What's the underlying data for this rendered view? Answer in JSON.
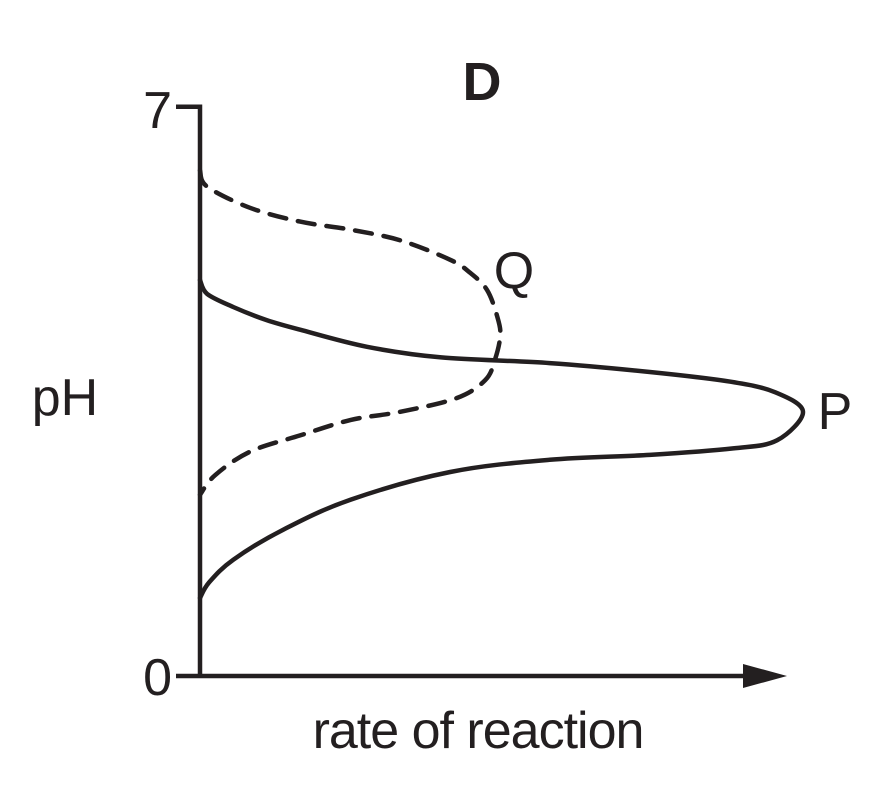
{
  "figure": {
    "colors": {
      "ink": "#231f20",
      "background": "#ffffff"
    },
    "labels": {
      "title": "D",
      "y_axis": "pH",
      "x_axis": "rate of reaction",
      "y_top_tick": "7",
      "y_bottom_tick": "0",
      "solid_curve": "P",
      "dashed_curve": "Q"
    }
  },
  "chart_data": {
    "type": "line",
    "title": "D",
    "xlabel": "rate of reaction",
    "ylabel": "pH",
    "ylim": [
      0,
      7
    ],
    "xlim": [
      0,
      100
    ],
    "x_axis_note": "rate axis has no numeric ticks; values are relative units 0-100",
    "y_ticks": [
      7,
      0
    ],
    "grid": false,
    "legend_position": "inline-curve-labels",
    "series": [
      {
        "name": "P",
        "line_style": "solid",
        "peak": {
          "rate": 100,
          "pH": 3.25
        },
        "axis_intercepts_pH": [
          4.87,
          0.96
        ],
        "points": [
          [
            0,
            4.87
          ],
          [
            1.2,
            4.7
          ],
          [
            5.5,
            4.54
          ],
          [
            11,
            4.38
          ],
          [
            16.6,
            4.26
          ],
          [
            27.7,
            4.05
          ],
          [
            40,
            3.92
          ],
          [
            58,
            3.85
          ],
          [
            74.6,
            3.74
          ],
          [
            88,
            3.62
          ],
          [
            95.4,
            3.49
          ],
          [
            100,
            3.25
          ],
          [
            95.7,
            2.9
          ],
          [
            88.4,
            2.8
          ],
          [
            74.6,
            2.72
          ],
          [
            58,
            2.66
          ],
          [
            41.5,
            2.51
          ],
          [
            25,
            2.17
          ],
          [
            13.8,
            1.8
          ],
          [
            5.5,
            1.43
          ],
          [
            1.5,
            1.15
          ],
          [
            0,
            0.96
          ]
        ]
      },
      {
        "name": "Q",
        "line_style": "dashed",
        "peak": {
          "rate": 49.8,
          "pH": 4.19
        },
        "axis_intercepts_pH": [
          6.22,
          2.23
        ],
        "points": [
          [
            0,
            6.22
          ],
          [
            1.2,
            6.02
          ],
          [
            8.3,
            5.76
          ],
          [
            16.6,
            5.59
          ],
          [
            25,
            5.49
          ],
          [
            33.2,
            5.36
          ],
          [
            41.5,
            5.12
          ],
          [
            44.8,
            4.96
          ],
          [
            47.6,
            4.75
          ],
          [
            49.3,
            4.42
          ],
          [
            49.8,
            4.19
          ],
          [
            48.9,
            3.89
          ],
          [
            47.3,
            3.64
          ],
          [
            42.6,
            3.42
          ],
          [
            33.2,
            3.25
          ],
          [
            25,
            3.15
          ],
          [
            16.6,
            2.96
          ],
          [
            8.3,
            2.76
          ],
          [
            2.5,
            2.47
          ],
          [
            0,
            2.23
          ]
        ]
      }
    ]
  }
}
